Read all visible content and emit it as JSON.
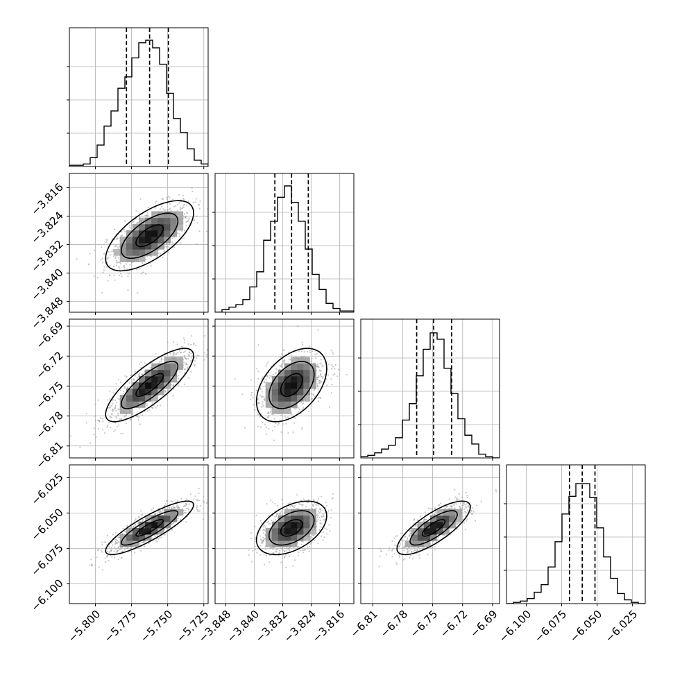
{
  "chart_data": {
    "type": "corner",
    "title": "",
    "grid": true,
    "style": {
      "hist_color": "#000000",
      "scatter_color": "#9a9a9a",
      "density_dark": "#000000",
      "density_light": "#ffffff",
      "quantile_line": "dashed",
      "frame_color": "#000000"
    },
    "parameters": [
      {
        "range": [
          -5.818,
          -5.722
        ],
        "ticks": [
          -5.8,
          -5.775,
          -5.75,
          -5.725
        ],
        "tick_labels": [
          "−5.800",
          "−5.775",
          "−5.750",
          "−5.725"
        ],
        "quantiles": [
          -5.7785,
          -5.7625,
          -5.7495
        ],
        "hist_max": 1.0,
        "hist": [
          0.01,
          0.01,
          0.02,
          0.07,
          0.17,
          0.32,
          0.44,
          0.62,
          0.71,
          0.86,
          0.98,
          1.0,
          0.94,
          0.81,
          0.58,
          0.38,
          0.27,
          0.14,
          0.05,
          0.02
        ]
      },
      {
        "range": [
          -3.851,
          -3.812
        ],
        "ticks": [
          -3.848,
          -3.84,
          -3.832,
          -3.824,
          -3.816
        ],
        "tick_labels": [
          "−3.848",
          "−3.840",
          "−3.832",
          "−3.824",
          "−3.816"
        ],
        "quantiles": [
          -3.8342,
          -3.8295,
          -3.8248
        ],
        "hist_max": 1.0,
        "hist": [
          0.0,
          0.02,
          0.04,
          0.06,
          0.1,
          0.2,
          0.32,
          0.57,
          0.72,
          0.91,
          1.0,
          0.87,
          0.72,
          0.5,
          0.3,
          0.18,
          0.07,
          0.03,
          0.01,
          0.01
        ]
      },
      {
        "range": [
          -6.822,
          -6.683
        ],
        "ticks": [
          -6.81,
          -6.78,
          -6.75,
          -6.72,
          -6.69
        ],
        "tick_labels": [
          "−6.81",
          "−6.78",
          "−6.75",
          "−6.72",
          "−6.69"
        ],
        "quantiles": [
          -6.766,
          -6.749,
          -6.731
        ],
        "hist_max": 1.0,
        "hist": [
          0.01,
          0.02,
          0.04,
          0.07,
          0.1,
          0.16,
          0.3,
          0.43,
          0.65,
          0.86,
          0.99,
          0.94,
          0.71,
          0.51,
          0.31,
          0.18,
          0.11,
          0.03,
          0.01,
          0.0
        ]
      },
      {
        "range": [
          -6.114,
          -6.016
        ],
        "ticks": [
          -6.1,
          -6.075,
          -6.05,
          -6.025
        ],
        "tick_labels": [
          "−6.100",
          "−6.075",
          "−6.050",
          "−6.025"
        ],
        "quantiles": [
          -6.0695,
          -6.0605,
          -6.0515
        ],
        "hist_max": 1.0,
        "hist": [
          0.0,
          0.01,
          0.02,
          0.04,
          0.09,
          0.15,
          0.29,
          0.49,
          0.71,
          0.85,
          0.95,
          0.95,
          0.84,
          0.6,
          0.37,
          0.2,
          0.08,
          0.03,
          0.01,
          0.0
        ]
      }
    ],
    "pairs": [
      {
        "row": 1,
        "col": 0,
        "corr": 0.65
      },
      {
        "row": 2,
        "col": 0,
        "corr": 0.8
      },
      {
        "row": 2,
        "col": 1,
        "corr": 0.45
      },
      {
        "row": 3,
        "col": 0,
        "corr": 0.86
      },
      {
        "row": 3,
        "col": 1,
        "corr": 0.45
      },
      {
        "row": 3,
        "col": 2,
        "corr": 0.78
      }
    ]
  }
}
